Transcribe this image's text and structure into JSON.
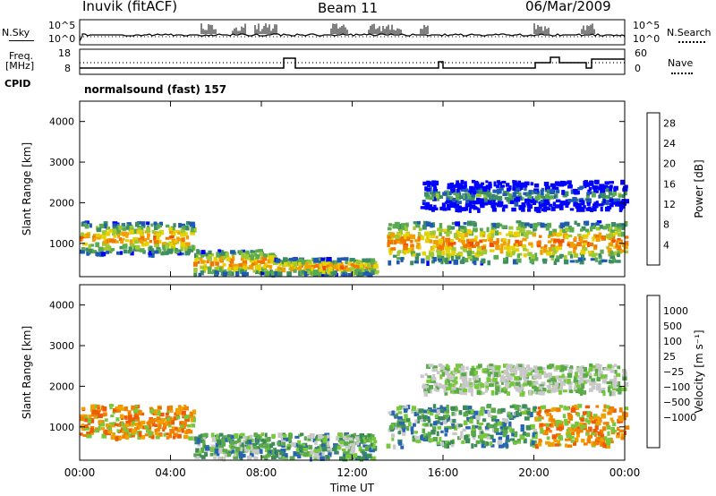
{
  "header": {
    "station": "Inuvik (fitACF)",
    "beam": "Beam 11",
    "date": "06/Mar/2009"
  },
  "strips": {
    "nsky": {
      "label": "N.Sky",
      "y_top": "10^5",
      "y_bottom": "10^0"
    },
    "nsearch": {
      "label": "N.Search",
      "y_top": "10^5",
      "y_bottom": "10^0"
    },
    "freq": {
      "label": "Freq.",
      "unit": "[MHz]",
      "y_top": "18",
      "y_bottom": "8"
    },
    "nave": {
      "label": "Nave",
      "y_top": "60",
      "y_bottom": "0"
    },
    "cpid_label": "CPID",
    "cpid_value": "normalsound (fast) 157"
  },
  "colors": {
    "power_scale": [
      "#0000ff",
      "#1e5ab4",
      "#3c8c64",
      "#5aaa50",
      "#a0c832",
      "#e6d200",
      "#f0a000",
      "#f07800",
      "#f05000",
      "#ff0000"
    ],
    "velocity_scale": [
      "#1e3ca0",
      "#2864b4",
      "#3c8c5a",
      "#5aaa4b",
      "#78c83c",
      "#c8c8c8",
      "#f0a000",
      "#f08200",
      "#f05a00",
      "#ff0000"
    ]
  },
  "chart_data": [
    {
      "type": "heatmap",
      "name": "Power panel",
      "ylabel": "Slant Range [km]",
      "yticks": [
        1000,
        2000,
        3000,
        4000
      ],
      "ylim": [
        180,
        4500
      ],
      "xlim": [
        "00:00",
        "24:00"
      ],
      "colorbar": {
        "label": "Power [dB]",
        "ticks": [
          "4",
          "8",
          "12",
          "16",
          "20",
          "24",
          "28"
        ],
        "range": [
          0,
          30
        ]
      },
      "echo_bands": [
        {
          "t0": 0.0,
          "t1": 5.0,
          "range_km": [
            700,
            1500
          ],
          "level": 26
        },
        {
          "t0": 5.0,
          "t1": 8.5,
          "range_km": [
            200,
            800
          ],
          "level": 27
        },
        {
          "t0": 8.5,
          "t1": 13.0,
          "range_km": [
            200,
            600
          ],
          "level": 26
        },
        {
          "t0": 13.5,
          "t1": 24.0,
          "range_km": [
            500,
            1500
          ],
          "level": 27
        },
        {
          "t0": 15.0,
          "t1": 24.0,
          "range_km": [
            1800,
            2500
          ],
          "level": 14
        }
      ]
    },
    {
      "type": "heatmap",
      "name": "Velocity panel",
      "ylabel": "Slant Range [km]",
      "yticks": [
        1000,
        2000,
        3000,
        4000
      ],
      "ylim": [
        180,
        4500
      ],
      "xlim": [
        "00:00",
        "24:00"
      ],
      "xticks": [
        "00:00",
        "04:00",
        "08:00",
        "12:00",
        "16:00",
        "20:00",
        "00:00"
      ],
      "xlabel": "Time UT",
      "colorbar": {
        "label": "Velocity [m s⁻¹]",
        "ticks": [
          "1000",
          "500",
          "100",
          "25",
          "−25",
          "−100",
          "−500",
          "−1000"
        ]
      },
      "echo_bands": [
        {
          "t0": 0.0,
          "t1": 5.0,
          "range_km": [
            700,
            1500
          ],
          "level": "orange"
        },
        {
          "t0": 5.0,
          "t1": 13.0,
          "range_km": [
            200,
            800
          ],
          "level": "green"
        },
        {
          "t0": 13.5,
          "t1": 20.0,
          "range_km": [
            500,
            1500
          ],
          "level": "green"
        },
        {
          "t0": 20.0,
          "t1": 24.0,
          "range_km": [
            500,
            1500
          ],
          "level": "orange"
        },
        {
          "t0": 15.0,
          "t1": 24.0,
          "range_km": [
            1800,
            2500
          ],
          "level": "grey"
        }
      ]
    }
  ]
}
